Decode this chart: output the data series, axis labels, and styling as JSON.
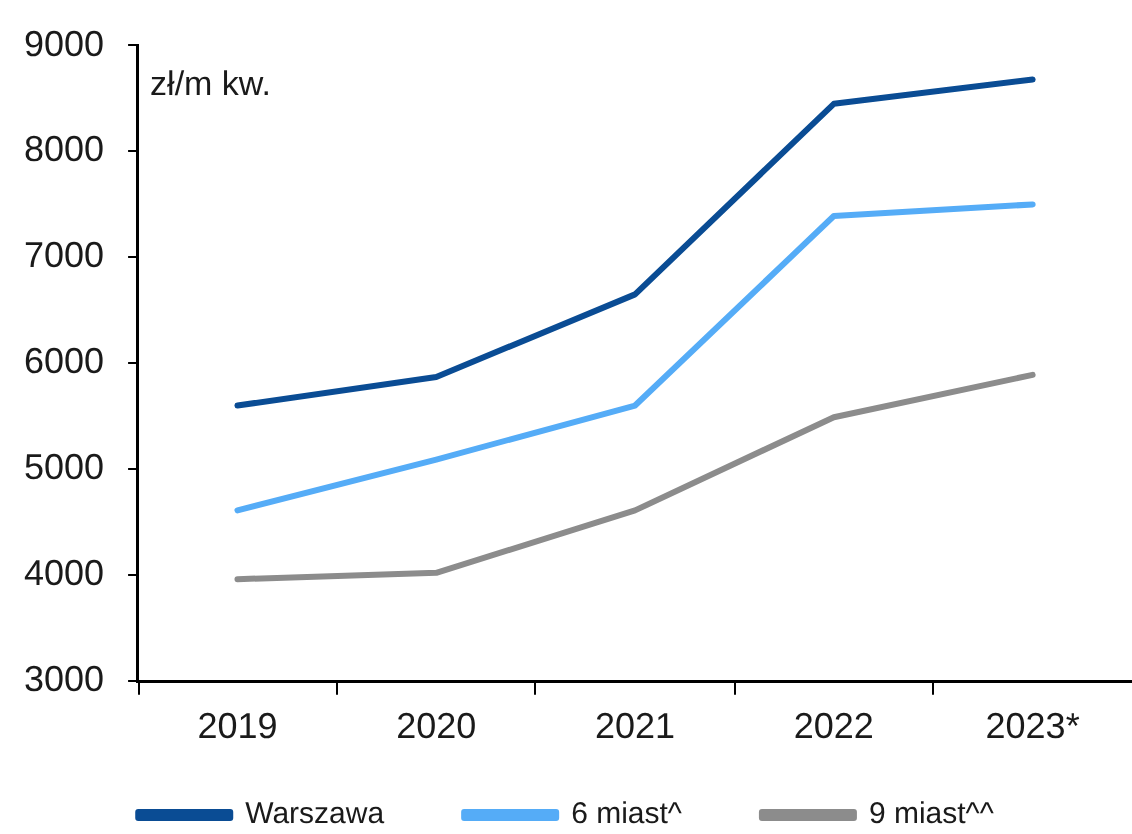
{
  "chart_data": {
    "type": "line",
    "ylabel": "zł/m kw.",
    "categories": [
      "2019",
      "2020",
      "2021",
      "2022",
      "2023*"
    ],
    "series": [
      {
        "name": "Warszawa",
        "color": "#0a4c94",
        "values": [
          5600,
          5870,
          6650,
          8450,
          8680
        ]
      },
      {
        "name": "6 miast^",
        "color": "#55acf7",
        "values": [
          4610,
          5090,
          5600,
          7390,
          7500
        ]
      },
      {
        "name": "9 miast^^",
        "color": "#8c8c8c",
        "values": [
          3960,
          4020,
          4610,
          5490,
          5890
        ]
      }
    ],
    "ylim": [
      3000,
      9000
    ],
    "yticks": [
      3000,
      4000,
      5000,
      6000,
      7000,
      8000,
      9000
    ],
    "grid": false,
    "legend": "bottom",
    "marker": "none",
    "line_style": "solid"
  }
}
